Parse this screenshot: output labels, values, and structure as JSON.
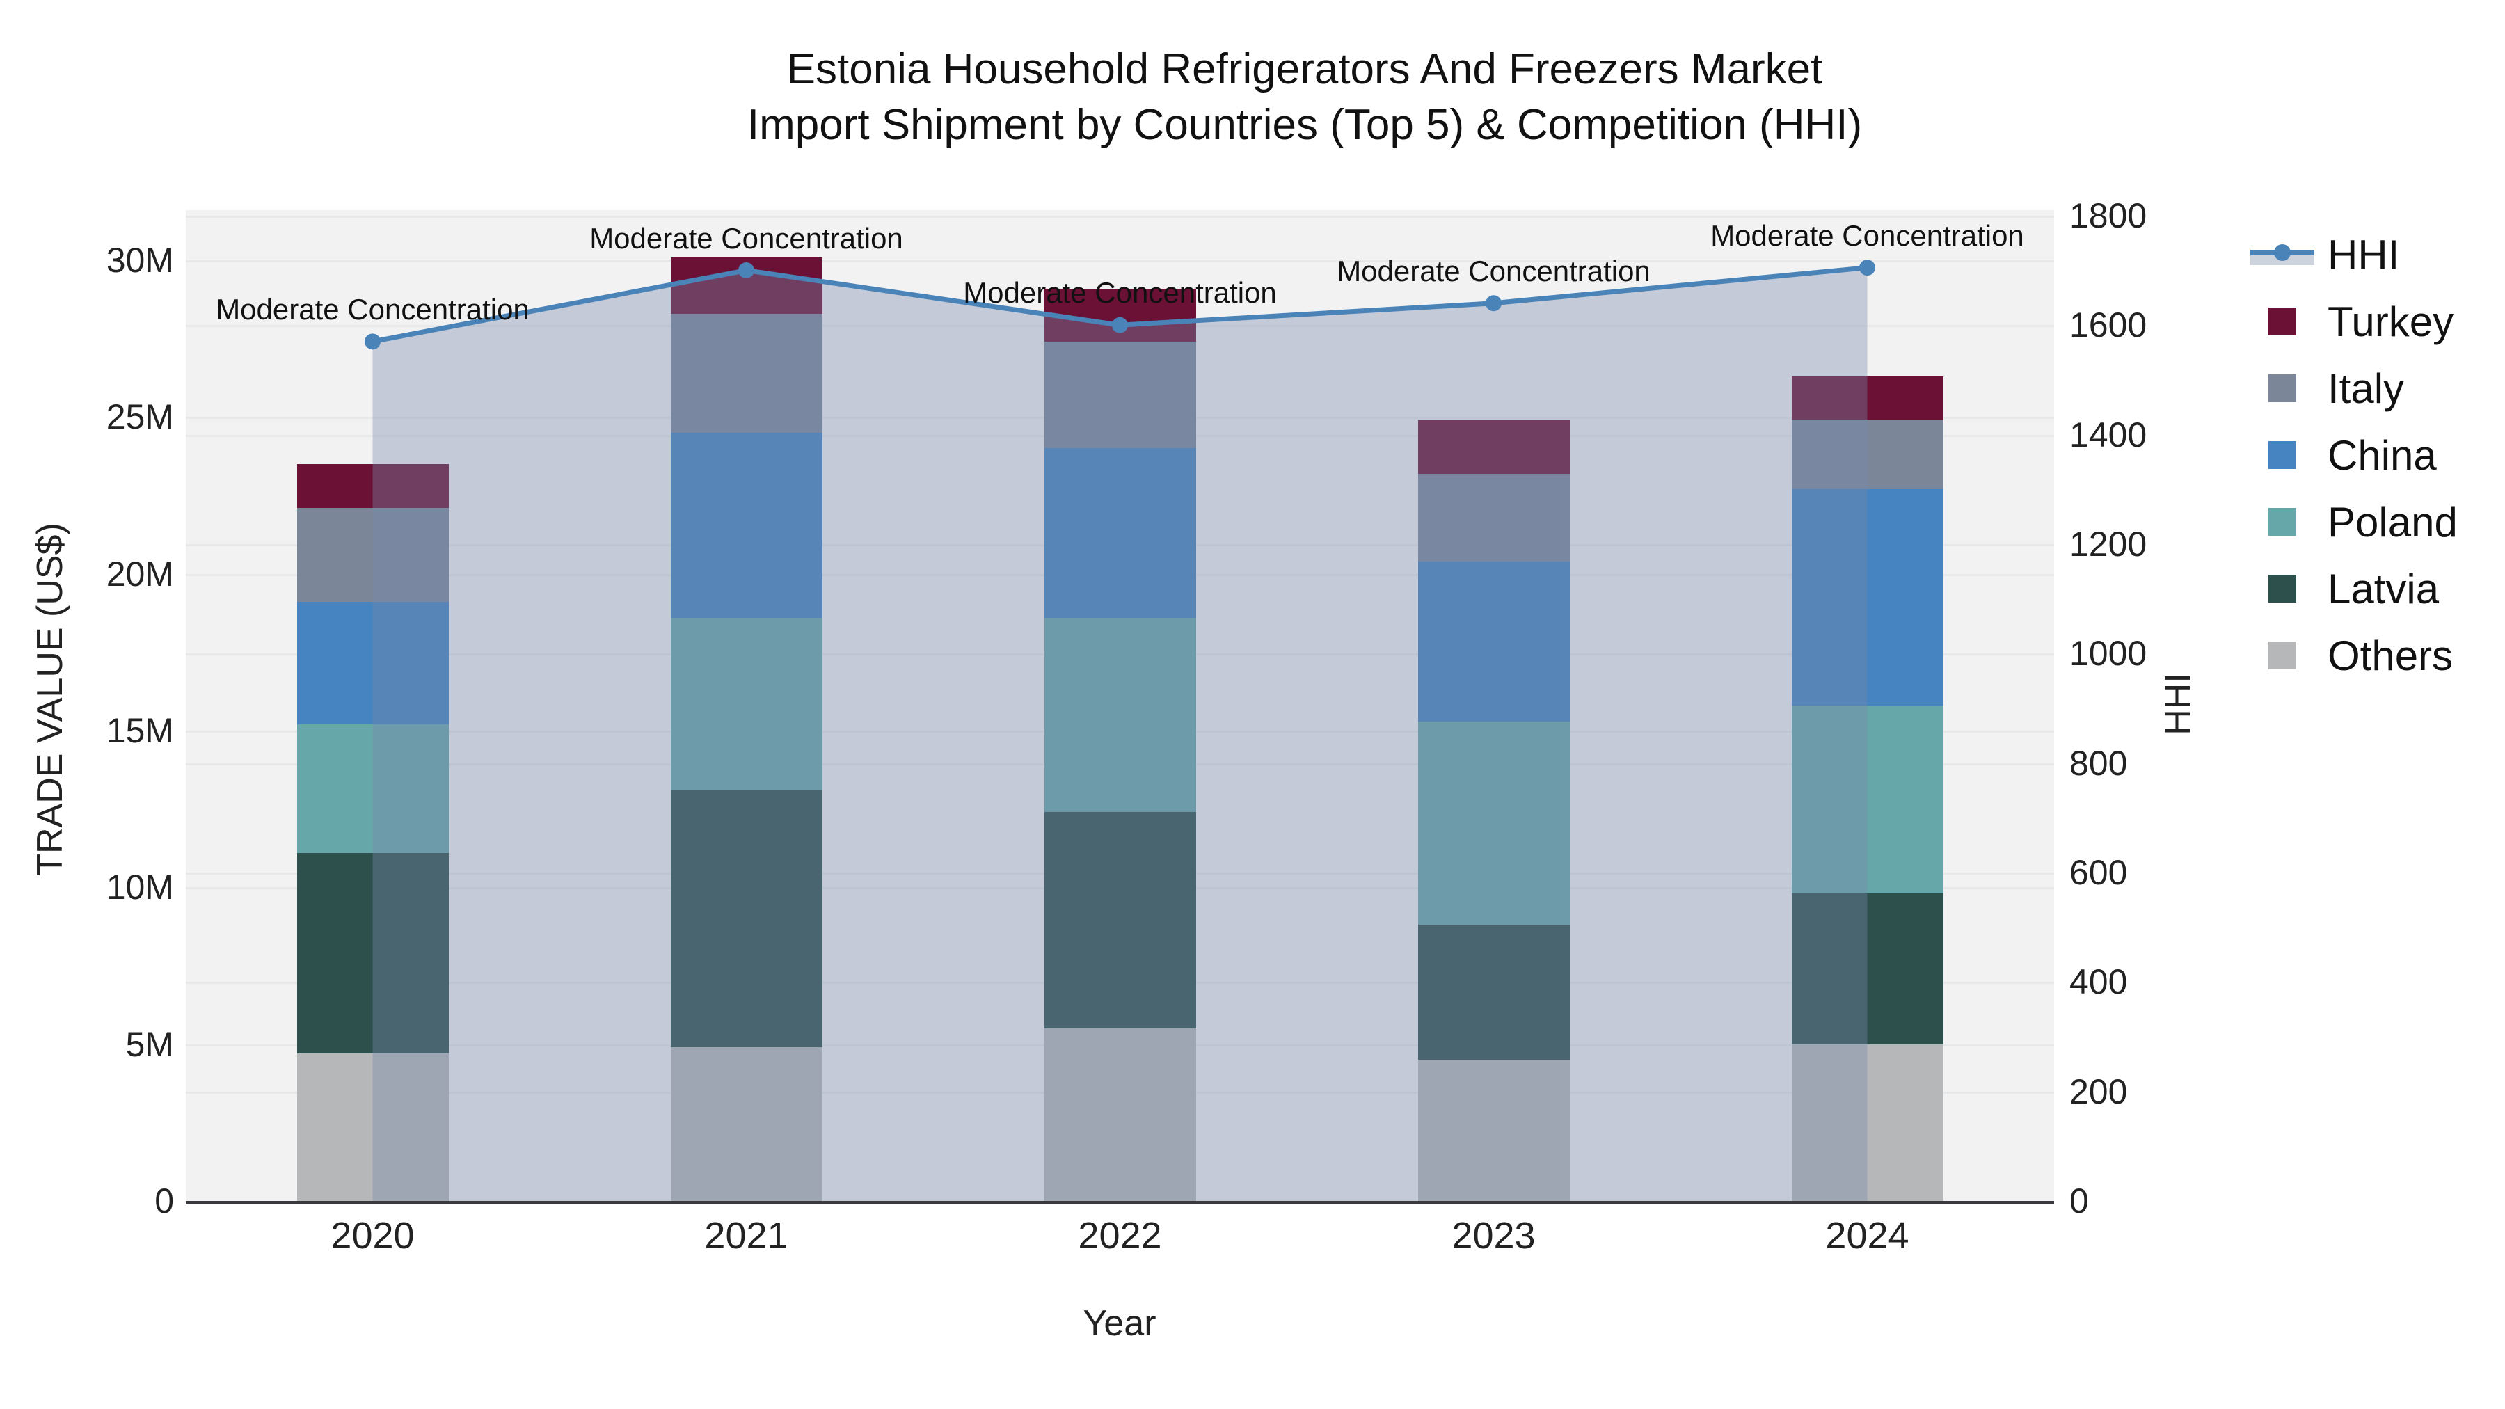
{
  "title": {
    "line1": "Estonia Household Refrigerators And Freezers Market",
    "line2": "Import Shipment by Countries (Top 5) & Competition (HHI)"
  },
  "annotation_text": "Moderate Concentration",
  "colors": {
    "paper_background": "#ffffff",
    "plot_background": "#f2f2f3",
    "gridline": "#e7e8ea",
    "axis_line": "#3a3a3e",
    "hhi_line": "#4a83b8",
    "hhi_area_fill": "rgba(120,137,170,0.38)",
    "turkey": "#6a1135",
    "italy": "#7b8799",
    "china": "#4583c1",
    "poland": "#66a7aa",
    "latvia": "#2d504c",
    "others": "#b5b7b9"
  },
  "chart_data": {
    "type": "bar",
    "subtype": "stacked-bar-with-line",
    "title": "Estonia Household Refrigerators And Freezers Market Import Shipment by Countries (Top 5) & Competition (HHI)",
    "categories": [
      "2020",
      "2021",
      "2022",
      "2023",
      "2024"
    ],
    "xlabel": "Year",
    "bar_value_unit": "M US$ (millions of US dollars)",
    "series": [
      {
        "name": "Others",
        "color": "#b5b7b9",
        "values": [
          4.7,
          4.9,
          5.5,
          4.5,
          5.0
        ]
      },
      {
        "name": "Latvia",
        "color": "#2d504c",
        "values": [
          6.4,
          8.2,
          6.9,
          4.3,
          4.8
        ]
      },
      {
        "name": "Poland",
        "color": "#66a7aa",
        "values": [
          4.1,
          5.5,
          6.2,
          6.5,
          6.0
        ]
      },
      {
        "name": "China",
        "color": "#4583c1",
        "values": [
          3.9,
          5.9,
          5.4,
          5.1,
          6.9
        ]
      },
      {
        "name": "Italy",
        "color": "#7b8799",
        "values": [
          3.0,
          3.8,
          3.4,
          2.8,
          2.2
        ]
      },
      {
        "name": "Turkey",
        "color": "#6a1135",
        "values": [
          1.4,
          1.8,
          1.7,
          1.7,
          1.4
        ]
      }
    ],
    "bar_totals": [
      23.5,
      30.1,
      29.1,
      24.9,
      26.3
    ],
    "line_series": {
      "name": "HHI",
      "color": "#4a83b8",
      "area_fill": "rgba(120,137,170,0.38)",
      "values": [
        1570,
        1700,
        1600,
        1640,
        1705
      ],
      "point_annotations": [
        "Moderate Concentration",
        "Moderate Concentration",
        "Moderate Concentration",
        "Moderate Concentration",
        "Moderate Concentration"
      ]
    },
    "y_left": {
      "title": "TRADE VALUE (US$)",
      "tick_labels": [
        "0",
        "5M",
        "10M",
        "15M",
        "20M",
        "25M",
        "30M"
      ],
      "tick_values": [
        0,
        5,
        10,
        15,
        20,
        25,
        30
      ],
      "axis_max": 31.6,
      "grid": true
    },
    "y_right": {
      "title": "HHI",
      "tick_labels": [
        "0",
        "200",
        "400",
        "600",
        "800",
        "1000",
        "1200",
        "1400",
        "1600",
        "1800"
      ],
      "tick_values": [
        0,
        200,
        400,
        600,
        800,
        1000,
        1200,
        1400,
        1600,
        1800
      ],
      "axis_max": 1810,
      "grid": true
    },
    "legend": {
      "position": "right",
      "entries": [
        {
          "label": "HHI",
          "type": "line",
          "color": "#4a83b8"
        },
        {
          "label": "Turkey",
          "type": "square",
          "color": "#6a1135"
        },
        {
          "label": "Italy",
          "type": "square",
          "color": "#7b8799"
        },
        {
          "label": "China",
          "type": "square",
          "color": "#4583c1"
        },
        {
          "label": "Poland",
          "type": "square",
          "color": "#66a7aa"
        },
        {
          "label": "Latvia",
          "type": "square",
          "color": "#2d504c"
        },
        {
          "label": "Others",
          "type": "square",
          "color": "#b5b7b9"
        }
      ]
    }
  }
}
